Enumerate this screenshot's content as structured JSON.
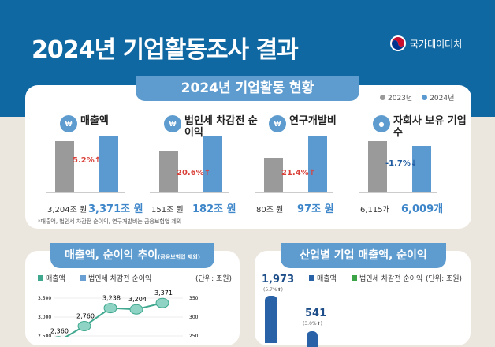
{
  "header": {
    "title": "2024년 기업활동조사 결과",
    "org": "국가데이터처"
  },
  "status": {
    "tab": "2024년 기업활동 현황",
    "legend": [
      "2023년",
      "2024년"
    ],
    "colors": {
      "2023": "#9a9a9a",
      "2024": "#5b99d1",
      "up": "#d9413a",
      "down": "#1e5aa0"
    },
    "items": [
      {
        "label": "매출액",
        "icon": "money-icon",
        "v2023": "3,204조 원",
        "v2024": "3,371조 원",
        "change": "5.2%",
        "dir": "up"
      },
      {
        "label": "법인세 차감전 순이익",
        "icon": "money-icon",
        "v2023": "151조 원",
        "v2024": "182조 원",
        "change": "20.6%",
        "dir": "up"
      },
      {
        "label": "연구개발비",
        "icon": "research-icon",
        "v2023": "80조 원",
        "v2024": "97조 원",
        "change": "21.4%",
        "dir": "up"
      },
      {
        "label": "자회사 보유 기업수",
        "icon": "company-icon",
        "v2023": "6,115개",
        "v2024": "6,009개",
        "change": "-1.7%",
        "dir": "down"
      }
    ],
    "note": "*매출액, 법인세 차감전 순이익, 연구개발비는 금융보험업 제외"
  },
  "trend": {
    "tab": "매출액, 순이익 추이",
    "tab_sub": "(금융보험업 제외)",
    "legend": [
      "매출액",
      "법인세 차감전 순이익"
    ],
    "unit": "(단위: 조원)"
  },
  "industry": {
    "tab": "산업별 기업 매출액, 순이익",
    "legend": [
      "매출액",
      "법인세 차감전 순이익"
    ],
    "unit": "(단위: 조원)",
    "bars": [
      {
        "value": "1,973",
        "change": "(5.7%⬆)"
      },
      {
        "value": "541",
        "change": "(3.0%⬆)"
      }
    ]
  },
  "chart_data": {
    "type": "line",
    "series": [
      {
        "name": "매출액",
        "values": [
          2360,
          2760,
          3238,
          3204,
          3371
        ]
      }
    ],
    "yticks_left": [
      "3,500",
      "3,000",
      "2,500"
    ],
    "yticks_right": [
      "350",
      "300",
      "250"
    ],
    "color": "#3fa88f"
  }
}
